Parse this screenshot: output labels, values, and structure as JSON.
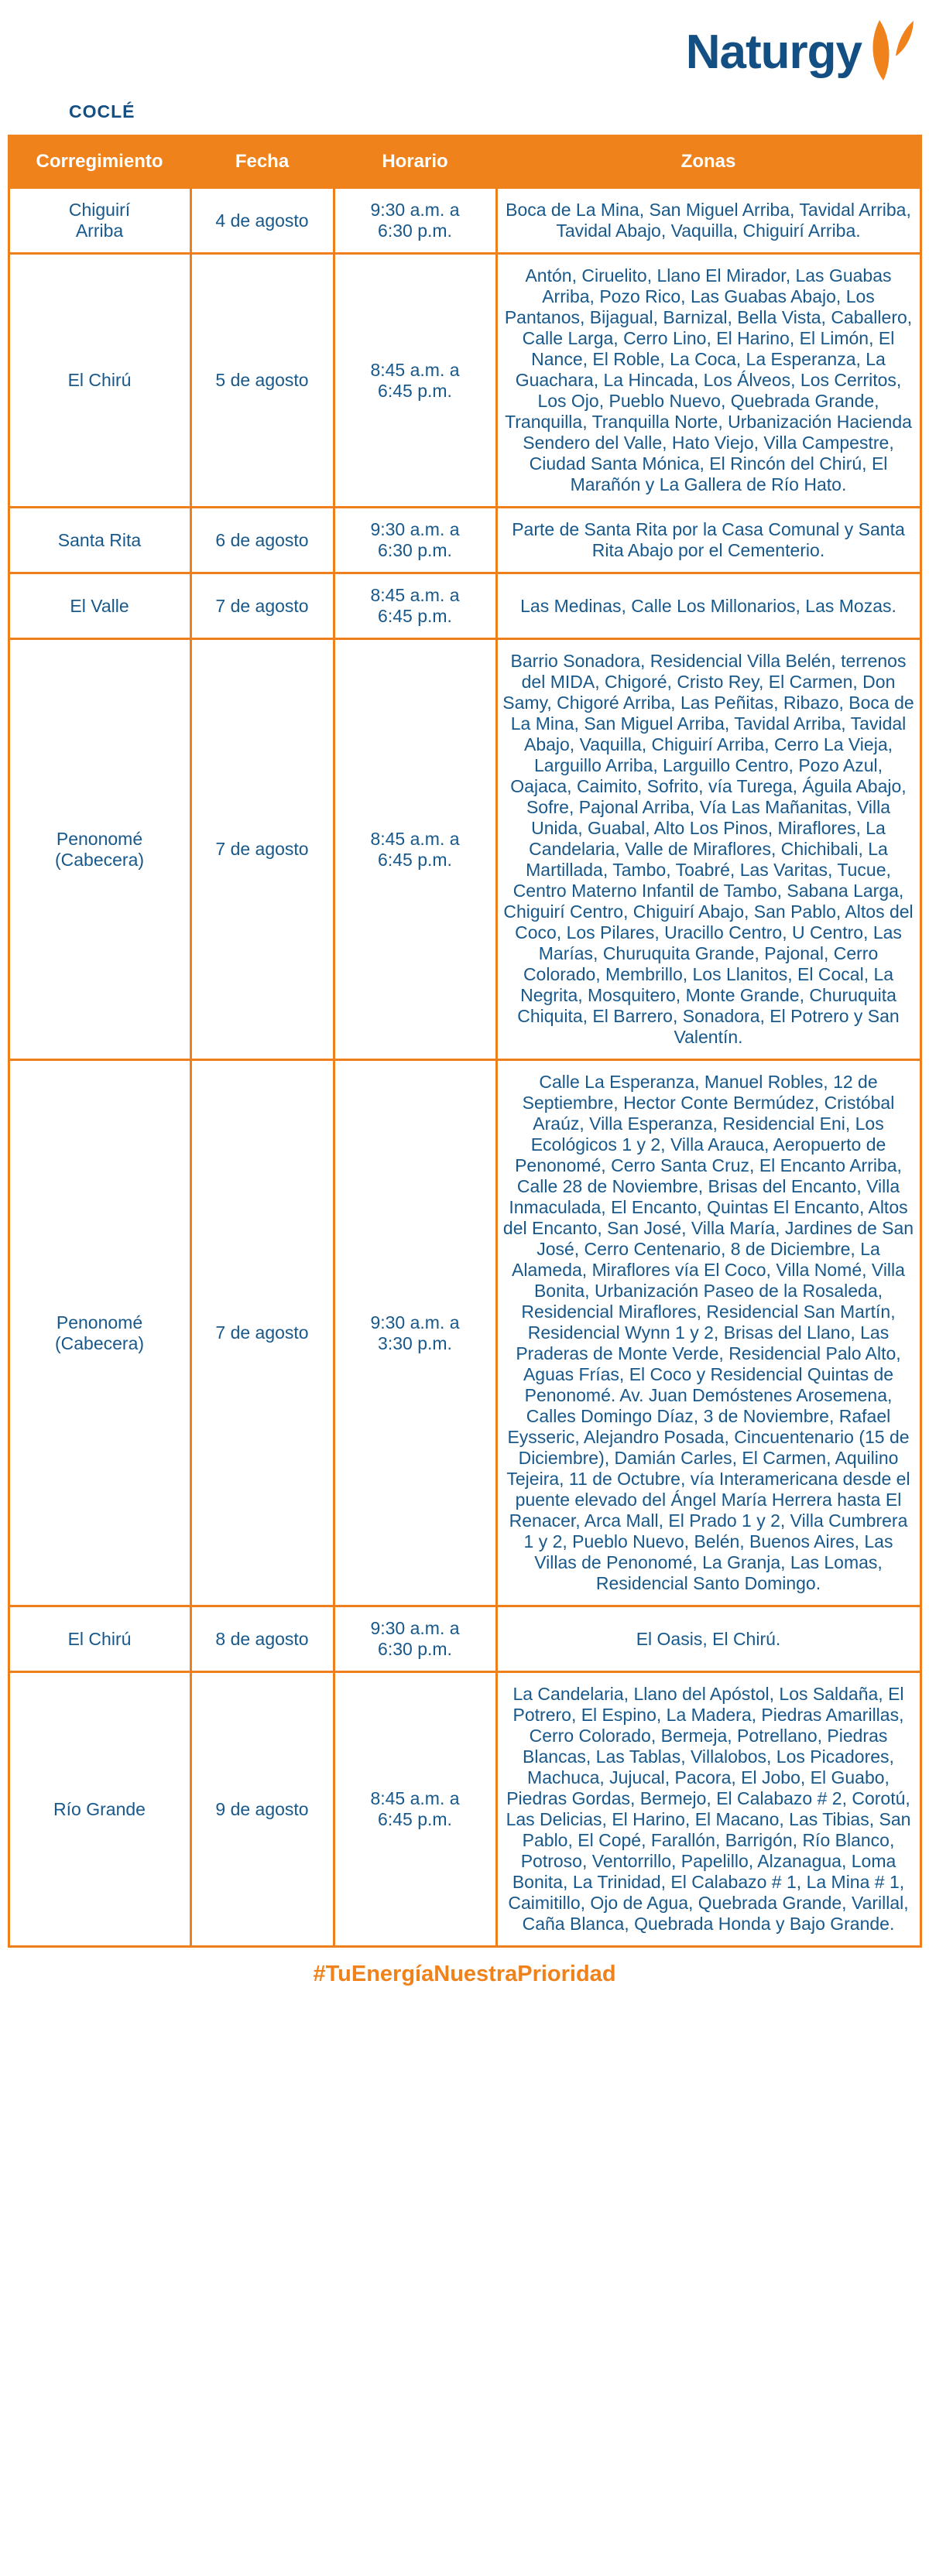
{
  "header": {
    "region": "COCLÉ",
    "brand": "Naturgy"
  },
  "colors": {
    "brand_orange": "#F0821C",
    "brand_blue": "#134F82",
    "text_blue": "#18588A",
    "header_text": "#FFFFFF"
  },
  "icons": {
    "logo_symbol": "naturgy-flame"
  },
  "table": {
    "columns": [
      "Corregimiento",
      "Fecha",
      "Horario",
      "Zonas"
    ],
    "rows": [
      {
        "corregimiento": "Chiguirí Arriba",
        "fecha": "4 de agosto",
        "horario": "9:30 a.m. a 6:30 p.m.",
        "zonas": "Boca de La Mina, San Miguel Arriba, Tavidal Arriba, Tavidal Abajo, Vaquilla, Chiguirí Arriba."
      },
      {
        "corregimiento": "El Chirú",
        "fecha": "5 de agosto",
        "horario": "8:45 a.m. a 6:45 p.m.",
        "zonas": "Antón, Ciruelito, Llano El Mirador, Las Guabas Arriba, Pozo Rico, Las Guabas Abajo, Los Pantanos, Bijagual, Barnizal, Bella Vista, Caballero, Calle Larga, Cerro Lino, El Harino, El Limón, El Nance, El Roble, La Coca, La Esperanza, La Guachara, La Hincada, Los Álveos, Los Cerritos, Los Ojo, Pueblo Nuevo, Quebrada Grande, Tranquilla, Tranquilla Norte, Urbanización Hacienda Sendero del Valle, Hato Viejo, Villa Campestre, Ciudad Santa Mónica, El Rincón del Chirú, El Marañón y La Gallera de Río Hato."
      },
      {
        "corregimiento": "Santa Rita",
        "fecha": "6 de agosto",
        "horario": "9:30 a.m. a 6:30 p.m.",
        "zonas": "Parte de Santa Rita por la Casa Comunal y Santa Rita Abajo por el Cementerio."
      },
      {
        "corregimiento": "El Valle",
        "fecha": "7 de agosto",
        "horario": "8:45 a.m. a 6:45 p.m.",
        "zonas": "Las Medinas, Calle Los Millonarios, Las Mozas."
      },
      {
        "corregimiento": "Penonomé (Cabecera)",
        "fecha": "7 de agosto",
        "horario": "8:45 a.m. a 6:45 p.m.",
        "zonas": "Barrio Sonadora, Residencial Villa Belén, terrenos del MIDA, Chigoré, Cristo Rey, El Carmen, Don Samy, Chigoré Arriba, Las Peñitas, Ribazo, Boca de La Mina, San Miguel Arriba, Tavidal Arriba, Tavidal Abajo, Vaquilla, Chiguirí Arriba, Cerro La Vieja, Larguillo Arriba, Larguillo Centro, Pozo Azul, Oajaca, Caimito, Sofrito, vía Turega, Águila Abajo, Sofre, Pajonal Arriba, Vía Las Mañanitas, Villa Unida, Guabal, Alto Los Pinos, Miraflores, La Candelaria, Valle de Miraflores, Chichibali, La Martillada, Tambo, Toabré, Las Varitas, Tucue, Centro Materno Infantil de Tambo, Sabana Larga, Chiguirí Centro, Chiguirí Abajo, San Pablo, Altos del Coco, Los Pilares, Uracillo Centro, U Centro, Las Marías, Churuquita Grande, Pajonal, Cerro Colorado, Membrillo, Los Llanitos, El Cocal, La Negrita, Mosquitero, Monte Grande, Churuquita Chiquita, El Barrero, Sonadora, El Potrero y San Valentín."
      },
      {
        "corregimiento": "Penonomé (Cabecera)",
        "fecha": "7 de agosto",
        "horario": "9:30 a.m. a 3:30 p.m.",
        "zonas": "Calle La Esperanza, Manuel Robles, 12 de Septiembre, Hector Conte Bermúdez, Cristóbal Araúz, Villa Esperanza, Residencial Eni, Los Ecológicos 1 y 2, Villa Arauca, Aeropuerto de Penonomé, Cerro Santa Cruz, El Encanto Arriba, Calle 28 de Noviembre, Brisas del Encanto, Villa Inmaculada, El Encanto, Quintas El Encanto, Altos del Encanto, San José, Villa María, Jardines de San José, Cerro Centenario, 8 de Diciembre, La Alameda, Miraflores vía El Coco, Villa Nomé, Villa Bonita, Urbanización Paseo de la Rosaleda, Residencial Miraflores, Residencial San Martín, Residencial Wynn 1 y 2, Brisas del Llano, Las Praderas de Monte Verde, Residencial Palo Alto, Aguas Frías, El Coco y Residencial Quintas de Penonomé. Av. Juan Demóstenes Arosemena, Calles Domingo Díaz, 3 de Noviembre, Rafael Eysseric, Alejandro Posada, Cincuentenario (15 de Diciembre), Damián Carles, El Carmen, Aquilino Tejeira, 11 de Octubre, vía Interamericana desde el puente elevado del Ángel María Herrera hasta El Renacer, Arca Mall, El Prado 1 y 2, Villa Cumbrera 1 y 2, Pueblo Nuevo, Belén, Buenos Aires, Las Villas de Penonomé, La Granja, Las Lomas, Residencial Santo Domingo."
      },
      {
        "corregimiento": "El Chirú",
        "fecha": "8 de agosto",
        "horario": "9:30 a.m. a 6:30 p.m.",
        "zonas": "El Oasis, El Chirú."
      },
      {
        "corregimiento": "Río Grande",
        "fecha": "9 de agosto",
        "horario": "8:45 a.m. a 6:45 p.m.",
        "zonas": "La Candelaria, Llano del Apóstol, Los Saldaña, El Potrero, El Espino, La Madera, Piedras Amarillas, Cerro Colorado, Bermeja, Potrellano, Piedras Blancas, Las Tablas, Villalobos, Los Picadores, Machuca, Jujucal, Pacora, El Jobo, El Guabo, Piedras Gordas, Bermejo, El Calabazo # 2, Corotú, Las Delicias, El Harino, El Macano, Las Tibias, San Pablo, El Copé, Farallón, Barrigón, Río Blanco, Potroso, Ventorrillo, Papelillo, Alzanagua, Loma Bonita, La Trinidad, El Calabazo # 1, La Mina # 1, Caimitillo, Ojo de Agua, Quebrada Grande, Varillal, Caña Blanca, Quebrada Honda y Bajo Grande."
      }
    ]
  },
  "footer": {
    "hashtag": "#TuEnergíaNuestraPrioridad"
  }
}
